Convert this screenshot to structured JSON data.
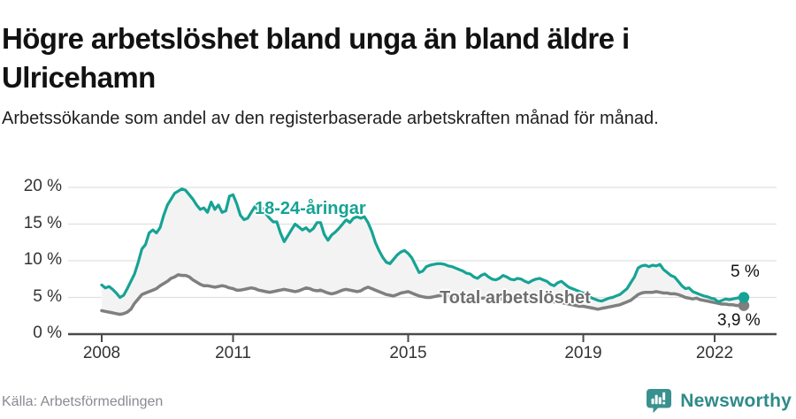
{
  "header": {
    "title": "Högre arbetslöshet bland unga än bland äldre i Ulricehamn",
    "subtitle": "Arbetssökande som andel av den registerbaserade arbetskraften månad för månad."
  },
  "chart_data": {
    "type": "line",
    "title": "Högre arbetslöshet bland unga än bland äldre i Ulricehamn",
    "xlabel": "",
    "ylabel": "",
    "ylim": [
      0,
      20
    ],
    "grid": "horizontal",
    "legend_position": "inline-labels",
    "x_unit": "month",
    "x_range": [
      "2008-01",
      "2022-09"
    ],
    "x_ticks": [
      2008,
      2011,
      2015,
      2019,
      2022
    ],
    "y_tick_values": [
      0,
      5,
      10,
      15,
      20
    ],
    "y_tick_labels": [
      "0 %",
      "5 %",
      "10 %",
      "15 %",
      "20 %"
    ],
    "fill_between_color": "#f3f3f3",
    "series": [
      {
        "name": "18-24-åringar",
        "color": "#16a394",
        "end_label": "5 %",
        "end_value": 5.0,
        "values": [
          6.7,
          6.3,
          6.5,
          6.1,
          5.6,
          5.0,
          5.3,
          6.2,
          7.2,
          8.2,
          9.8,
          11.6,
          12.2,
          13.8,
          14.2,
          13.8,
          14.5,
          16.2,
          17.6,
          18.4,
          19.2,
          19.5,
          19.8,
          19.6,
          19.0,
          18.4,
          17.6,
          17.0,
          17.2,
          16.6,
          18.0,
          17.0,
          17.6,
          16.6,
          16.8,
          18.8,
          19.0,
          17.8,
          16.2,
          15.6,
          15.8,
          16.6,
          17.4,
          16.8,
          17.2,
          16.4,
          15.8,
          15.3,
          15.3,
          13.8,
          12.6,
          13.4,
          14.2,
          15.0,
          14.6,
          14.2,
          14.5,
          14.0,
          14.4,
          15.2,
          15.2,
          13.6,
          12.8,
          13.5,
          13.9,
          14.4,
          15.0,
          15.6,
          15.2,
          15.8,
          16.0,
          15.8,
          16.0,
          15.2,
          14.0,
          12.5,
          11.4,
          10.5,
          9.8,
          9.6,
          10.2,
          10.8,
          11.2,
          11.4,
          11.0,
          10.4,
          9.4,
          8.4,
          8.6,
          9.2,
          9.4,
          9.5,
          9.6,
          9.6,
          9.5,
          9.3,
          9.2,
          9.0,
          8.8,
          8.6,
          8.3,
          8.2,
          7.8,
          7.6,
          8.0,
          8.2,
          7.8,
          7.5,
          7.4,
          7.6,
          8.0,
          7.8,
          7.5,
          7.4,
          7.6,
          7.5,
          7.2,
          7.0,
          7.3,
          7.5,
          7.6,
          7.4,
          7.2,
          6.8,
          6.6,
          7.0,
          7.2,
          6.8,
          6.4,
          6.2,
          6.0,
          5.8,
          5.6,
          5.3,
          5.0,
          4.8,
          4.6,
          4.5,
          4.7,
          4.9,
          5.0,
          5.2,
          5.4,
          5.8,
          6.2,
          7.0,
          7.8,
          9.0,
          9.3,
          9.4,
          9.2,
          9.4,
          9.3,
          9.5,
          8.8,
          8.4,
          8.0,
          7.8,
          7.2,
          6.6,
          6.2,
          6.3,
          5.8,
          5.6,
          5.4,
          5.2,
          5.1,
          4.9,
          4.8,
          4.4,
          4.6,
          4.8,
          4.7,
          4.8,
          4.9,
          5.0,
          5.0
        ]
      },
      {
        "name": "Total arbetslöshet",
        "color": "#7f7f7f",
        "end_label": "3,9 %",
        "end_value": 3.9,
        "values": [
          3.2,
          3.1,
          3.0,
          2.9,
          2.8,
          2.7,
          2.8,
          3.0,
          3.4,
          4.2,
          4.8,
          5.4,
          5.6,
          5.8,
          6.0,
          6.2,
          6.6,
          6.9,
          7.2,
          7.6,
          7.8,
          8.1,
          8.0,
          8.0,
          7.8,
          7.4,
          7.1,
          6.8,
          6.6,
          6.6,
          6.5,
          6.4,
          6.5,
          6.6,
          6.5,
          6.3,
          6.2,
          6.0,
          6.0,
          6.1,
          6.2,
          6.3,
          6.2,
          6.0,
          5.9,
          5.8,
          5.7,
          5.8,
          5.9,
          6.0,
          6.1,
          6.0,
          5.9,
          5.8,
          5.9,
          6.1,
          6.3,
          6.2,
          6.0,
          5.9,
          6.0,
          5.8,
          5.6,
          5.5,
          5.6,
          5.8,
          6.0,
          6.1,
          6.0,
          5.9,
          5.8,
          5.9,
          6.2,
          6.4,
          6.2,
          6.0,
          5.8,
          5.6,
          5.4,
          5.3,
          5.2,
          5.4,
          5.6,
          5.7,
          5.8,
          5.6,
          5.4,
          5.2,
          5.1,
          5.0,
          5.0,
          5.1,
          5.2,
          5.3,
          5.2,
          5.1,
          5.1,
          5.0,
          4.9,
          4.9,
          4.8,
          4.8,
          4.7,
          4.8,
          4.9,
          4.9,
          4.8,
          4.7,
          4.7,
          4.8,
          4.8,
          4.7,
          4.6,
          4.6,
          4.7,
          4.8,
          4.7,
          4.6,
          4.6,
          4.7,
          4.8,
          4.7,
          4.6,
          4.5,
          4.4,
          4.4,
          4.3,
          4.2,
          4.1,
          4.0,
          3.9,
          3.8,
          3.8,
          3.7,
          3.6,
          3.5,
          3.4,
          3.5,
          3.6,
          3.7,
          3.8,
          3.9,
          4.0,
          4.2,
          4.4,
          4.6,
          5.0,
          5.4,
          5.6,
          5.7,
          5.7,
          5.7,
          5.8,
          5.7,
          5.6,
          5.6,
          5.5,
          5.5,
          5.4,
          5.2,
          5.0,
          4.9,
          4.8,
          4.9,
          4.7,
          4.6,
          4.5,
          4.4,
          4.3,
          4.2,
          4.1,
          4.1,
          4.0,
          4.0,
          3.9,
          3.9,
          3.9
        ]
      }
    ]
  },
  "footer": {
    "source": "Källa: Arbetsförmedlingen",
    "brand": "Newsworthy"
  },
  "colors": {
    "accent_teal": "#16a394",
    "series_gray": "#7f7f7f",
    "brand_teal": "#2e8b88",
    "grid": "#e0e0e0",
    "axis": "#4a4a4a"
  }
}
